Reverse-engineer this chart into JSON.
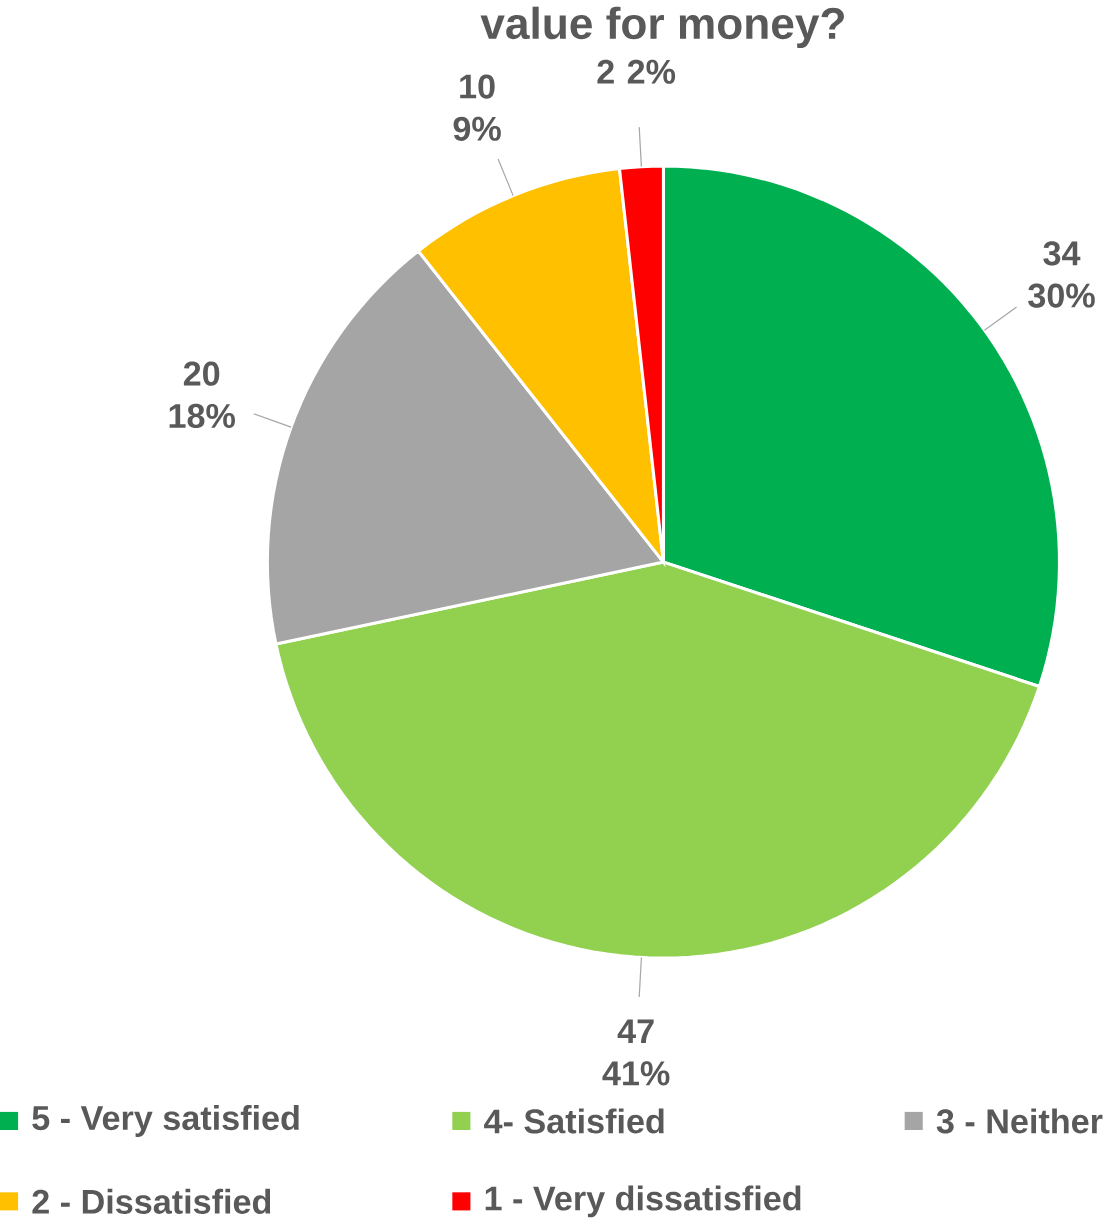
{
  "chart_data": {
    "type": "pie",
    "title": "value for money?",
    "categories": [
      "5 - Very satisfied",
      "4- Satisfied",
      "3 - Neither",
      "2 - Dissatisfied",
      "1 - Very dissatisfied"
    ],
    "values": [
      34,
      47,
      20,
      10,
      2
    ],
    "colors": [
      "#00b050",
      "#92d050",
      "#a5a5a5",
      "#ffc000",
      "#ff0000"
    ],
    "value_labels": [
      "34 30%",
      "47 41%",
      "20 18%",
      "10 9%",
      "2 2%"
    ],
    "legend": "bottom"
  }
}
